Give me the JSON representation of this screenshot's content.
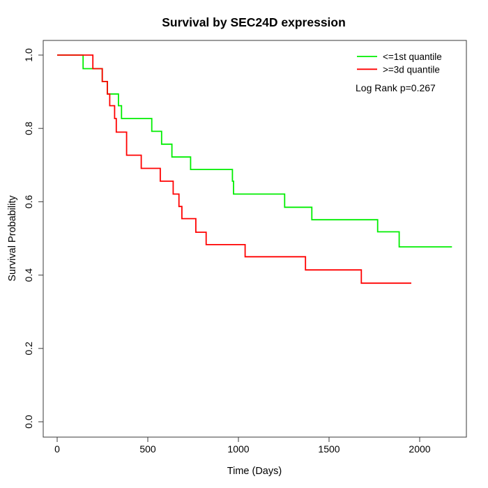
{
  "title": "Survival by SEC24D expression",
  "axes": {
    "x": {
      "label": "Time (Days)"
    },
    "y": {
      "label": "Survival Probability"
    }
  },
  "legend": {
    "items": [
      {
        "label": "<=1st quantile",
        "color": "#00ee00"
      },
      {
        "label": ">=3d quantile",
        "color": "#ff0000"
      }
    ],
    "note": "Log Rank p=0.267"
  },
  "chart_data": {
    "type": "line",
    "subtype": "kaplan-meier-step",
    "title": "Survival by SEC24D expression",
    "xlabel": "Time (Days)",
    "ylabel": "Survival Probability",
    "xlim": [
      0,
      2250
    ],
    "ylim": [
      0,
      1
    ],
    "x_ticks": [
      0,
      500,
      1000,
      1500,
      2000
    ],
    "y_ticks": [
      0,
      0.2,
      0.4,
      0.6,
      0.8,
      1
    ],
    "grid": false,
    "legend_position": "top-right",
    "annotation": "Log Rank p=0.267",
    "series": [
      {
        "name": "<=1st quantile",
        "color": "#00ee00",
        "points": [
          [
            0,
            1.0
          ],
          [
            143,
            0.963
          ],
          [
            249,
            0.928
          ],
          [
            277,
            0.894
          ],
          [
            338,
            0.862
          ],
          [
            355,
            0.827
          ],
          [
            522,
            0.792
          ],
          [
            576,
            0.757
          ],
          [
            633,
            0.722
          ],
          [
            736,
            0.688
          ],
          [
            967,
            0.656
          ],
          [
            973,
            0.621
          ],
          [
            1255,
            0.585
          ],
          [
            1405,
            0.551
          ],
          [
            1768,
            0.518
          ],
          [
            1887,
            0.477
          ],
          [
            2178,
            0.477
          ]
        ]
      },
      {
        "name": ">=3d quantile",
        "color": "#ff0000",
        "points": [
          [
            0,
            1.0
          ],
          [
            197,
            0.963
          ],
          [
            249,
            0.928
          ],
          [
            277,
            0.894
          ],
          [
            290,
            0.862
          ],
          [
            317,
            0.827
          ],
          [
            326,
            0.79
          ],
          [
            383,
            0.727
          ],
          [
            464,
            0.691
          ],
          [
            569,
            0.656
          ],
          [
            640,
            0.621
          ],
          [
            672,
            0.587
          ],
          [
            688,
            0.554
          ],
          [
            765,
            0.517
          ],
          [
            822,
            0.483
          ],
          [
            1037,
            0.45
          ],
          [
            1370,
            0.414
          ],
          [
            1678,
            0.378
          ],
          [
            1954,
            0.378
          ]
        ]
      }
    ]
  }
}
